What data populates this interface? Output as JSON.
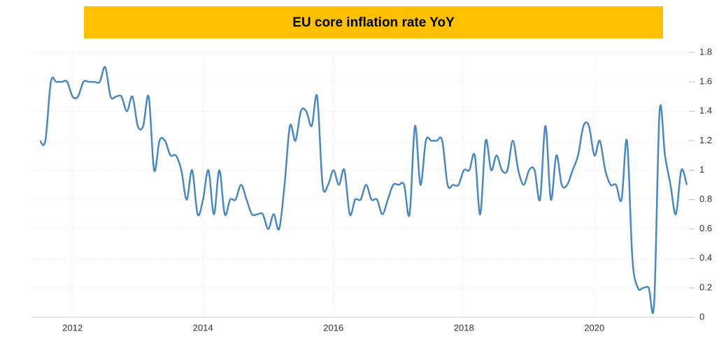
{
  "chart_data": {
    "type": "line",
    "title": "EU core inflation rate YoY",
    "x": [
      2011.5,
      2011.583,
      2011.667,
      2011.75,
      2011.833,
      2011.917,
      2012,
      2012.083,
      2012.167,
      2012.25,
      2012.333,
      2012.417,
      2012.5,
      2012.583,
      2012.667,
      2012.75,
      2012.833,
      2012.917,
      2013,
      2013.083,
      2013.167,
      2013.25,
      2013.333,
      2013.417,
      2013.5,
      2013.583,
      2013.667,
      2013.75,
      2013.833,
      2013.917,
      2014,
      2014.083,
      2014.167,
      2014.25,
      2014.333,
      2014.417,
      2014.5,
      2014.583,
      2014.667,
      2014.75,
      2014.833,
      2014.917,
      2015,
      2015.083,
      2015.167,
      2015.25,
      2015.333,
      2015.417,
      2015.5,
      2015.583,
      2015.667,
      2015.75,
      2015.833,
      2015.917,
      2016,
      2016.083,
      2016.167,
      2016.25,
      2016.333,
      2016.417,
      2016.5,
      2016.583,
      2016.667,
      2016.75,
      2016.833,
      2016.917,
      2017,
      2017.083,
      2017.167,
      2017.25,
      2017.333,
      2017.417,
      2017.5,
      2017.583,
      2017.667,
      2017.75,
      2017.833,
      2017.917,
      2018,
      2018.083,
      2018.167,
      2018.25,
      2018.333,
      2018.417,
      2018.5,
      2018.583,
      2018.667,
      2018.75,
      2018.833,
      2018.917,
      2019,
      2019.083,
      2019.167,
      2019.25,
      2019.333,
      2019.417,
      2019.5,
      2019.583,
      2019.667,
      2019.75,
      2019.833,
      2019.917,
      2020,
      2020.083,
      2020.167,
      2020.25,
      2020.333,
      2020.417,
      2020.5,
      2020.583,
      2020.667,
      2020.75,
      2020.833,
      2020.917,
      2021,
      2021.083,
      2021.167,
      2021.25,
      2021.333,
      2021.417
    ],
    "series": [
      {
        "name": "Core inflation rate",
        "color": "#4a88bd",
        "values": [
          1.2,
          1.2,
          1.6,
          1.6,
          1.6,
          1.6,
          1.5,
          1.5,
          1.6,
          1.6,
          1.6,
          1.6,
          1.7,
          1.5,
          1.5,
          1.5,
          1.4,
          1.5,
          1.3,
          1.3,
          1.5,
          1.0,
          1.2,
          1.2,
          1.1,
          1.1,
          1.0,
          0.8,
          1.0,
          0.7,
          0.8,
          1.0,
          0.7,
          1.0,
          0.7,
          0.8,
          0.8,
          0.9,
          0.8,
          0.7,
          0.7,
          0.7,
          0.6,
          0.7,
          0.6,
          0.9,
          1.3,
          1.2,
          1.4,
          1.4,
          1.3,
          1.5,
          0.9,
          0.9,
          1.0,
          0.9,
          1.0,
          0.7,
          0.8,
          0.8,
          0.9,
          0.8,
          0.8,
          0.7,
          0.8,
          0.9,
          0.9,
          0.9,
          0.7,
          1.3,
          0.9,
          1.2,
          1.2,
          1.2,
          1.2,
          0.9,
          0.9,
          0.9,
          1.0,
          1.0,
          1.1,
          0.7,
          1.2,
          1.0,
          1.1,
          1.0,
          1.0,
          1.2,
          1.0,
          0.9,
          1.0,
          1.0,
          0.8,
          1.3,
          0.8,
          1.1,
          0.9,
          0.9,
          1.0,
          1.1,
          1.3,
          1.3,
          1.1,
          1.2,
          1.0,
          0.9,
          0.9,
          0.8,
          1.2,
          0.4,
          0.2,
          0.2,
          0.2,
          0.1,
          1.4,
          1.1,
          0.9,
          0.7,
          1.0,
          0.9
        ]
      }
    ],
    "xlim": [
      2011.37,
      2021.45
    ],
    "xticks": [
      2012,
      2014,
      2016,
      2018,
      2020
    ],
    "ylim": [
      0,
      1.8
    ],
    "yticks": [
      0,
      0.2,
      0.4,
      0.6,
      0.8,
      1,
      1.2,
      1.4,
      1.6,
      1.8
    ],
    "grid": true
  }
}
